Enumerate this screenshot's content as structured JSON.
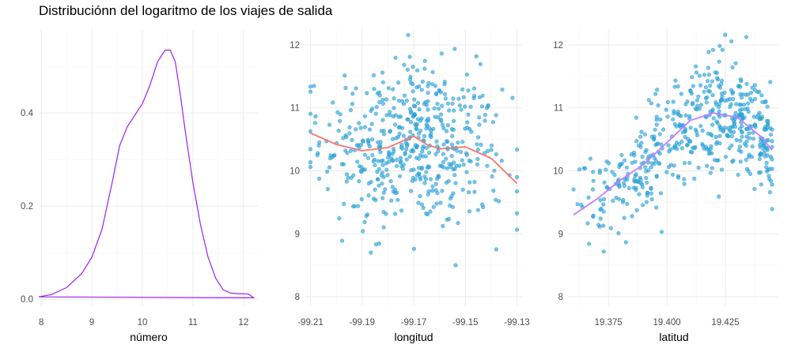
{
  "title": "Distribuciónn del logaritmo de los viajes de salida",
  "colors": {
    "density": "#a020f0",
    "points": "#29a8e0",
    "loess1": "#f8766d",
    "loess2": "#c77cff"
  },
  "chart_data": [
    {
      "type": "line",
      "xlabel": "número",
      "ylabel": "",
      "xlim": [
        7.95,
        12.3
      ],
      "ylim": [
        -0.015,
        0.58
      ],
      "xticks": [
        "8",
        "9",
        "10",
        "11",
        "12"
      ],
      "yticks": [
        "0.0",
        "0.2",
        "0.4"
      ],
      "grid": true,
      "x": [
        7.95,
        8.2,
        8.5,
        8.8,
        9.0,
        9.2,
        9.4,
        9.55,
        9.7,
        9.85,
        10.0,
        10.15,
        10.3,
        10.45,
        10.55,
        10.65,
        10.75,
        10.85,
        11.0,
        11.15,
        11.3,
        11.45,
        11.6,
        11.75,
        11.9,
        12.1,
        12.2
      ],
      "y": [
        0.005,
        0.01,
        0.025,
        0.055,
        0.09,
        0.15,
        0.25,
        0.33,
        0.37,
        0.395,
        0.42,
        0.46,
        0.51,
        0.535,
        0.535,
        0.51,
        0.44,
        0.36,
        0.25,
        0.16,
        0.09,
        0.045,
        0.02,
        0.013,
        0.012,
        0.011,
        0.003
      ]
    },
    {
      "type": "scatter",
      "xlabel": "longitud",
      "ylabel": "",
      "xlim": [
        -99.212,
        -99.128
      ],
      "ylim": [
        7.85,
        12.25
      ],
      "xticks": [
        "-99.21",
        "-99.19",
        "-99.17",
        "-99.15",
        "-99.13"
      ],
      "yticks": [
        "8",
        "9",
        "10",
        "11",
        "12"
      ],
      "grid": true,
      "n_points": 520,
      "smooth": {
        "x": [
          -99.21,
          -99.2,
          -99.19,
          -99.18,
          -99.17,
          -99.165,
          -99.16,
          -99.15,
          -99.14,
          -99.13
        ],
        "y": [
          10.6,
          10.42,
          10.32,
          10.37,
          10.55,
          10.42,
          10.35,
          10.38,
          10.2,
          9.8
        ]
      }
    },
    {
      "type": "scatter",
      "xlabel": "latitud",
      "ylabel": "",
      "xlim": [
        19.358,
        19.448
      ],
      "ylim": [
        7.85,
        12.25
      ],
      "xticks": [
        "19.375",
        "19.400",
        "19.425"
      ],
      "yticks": [
        "8",
        "9",
        "10",
        "11",
        "12"
      ],
      "grid": true,
      "n_points": 520,
      "smooth": {
        "x": [
          19.36,
          19.37,
          19.38,
          19.39,
          19.4,
          19.41,
          19.42,
          19.43,
          19.44,
          19.445
        ],
        "y": [
          9.3,
          9.55,
          9.85,
          10.1,
          10.45,
          10.8,
          10.92,
          10.85,
          10.55,
          10.33
        ]
      }
    }
  ]
}
